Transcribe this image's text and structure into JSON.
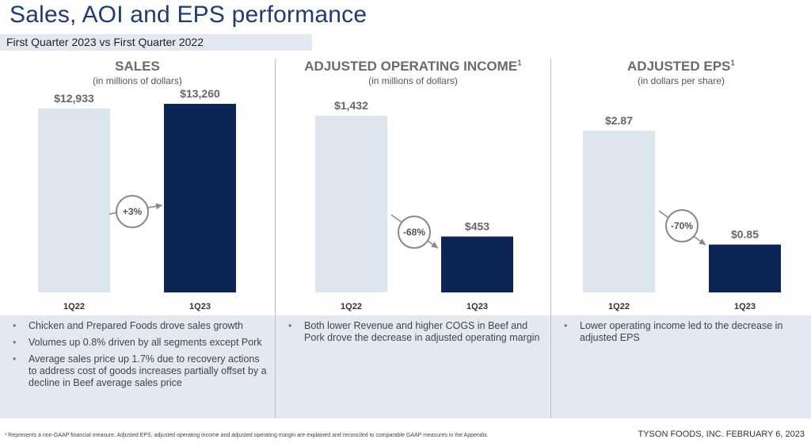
{
  "page": {
    "title": "Sales, AOI and EPS performance",
    "subtitle": "First Quarter 2023 vs First Quarter 2022",
    "footnote": "¹ Represents a non-GAAP financial measure. Adjusted EPS, adjusted operating income and adjusted operating margin are explained and reconciled to comparable GAAP measures in the Appendix.",
    "company_date": "TYSON FOODS, INC. FEBRUARY 6, 2023"
  },
  "colors": {
    "light_bar": "#dde5ef",
    "dark_bar": "#0b2554",
    "title": "#1f3b73",
    "note_bg": "#e2e9f2"
  },
  "panels": [
    {
      "title": "SALES",
      "title_sup": "",
      "unit": "(in millions of dollars)",
      "notes": [
        "Chicken and Prepared Foods drove sales growth",
        "Volumes up 0.8% driven by all segments except Pork",
        "Average sales price up 1.7% due to recovery actions to address cost of goods increases partially offset by a decline in Beef average sales price"
      ]
    },
    {
      "title": "ADJUSTED OPERATING INCOME",
      "title_sup": "1",
      "unit": "(in millions of dollars)",
      "notes": [
        "Both lower Revenue and higher COGS in Beef and Pork drove the decrease in adjusted operating margin"
      ]
    },
    {
      "title": "ADJUSTED EPS",
      "title_sup": "1",
      "unit": "(in dollars per share)",
      "notes": [
        "Lower operating income led to the decrease in adjusted EPS"
      ]
    }
  ],
  "chart_data": [
    {
      "type": "bar",
      "title": "SALES",
      "categories": [
        "1Q22",
        "1Q23"
      ],
      "values": [
        12933,
        13260
      ],
      "value_labels": [
        "$12,933",
        "$13,260"
      ],
      "change_label": "+3%",
      "ylim": [
        0,
        13260
      ],
      "grid": false
    },
    {
      "type": "bar",
      "title": "ADJUSTED OPERATING INCOME",
      "categories": [
        "1Q22",
        "1Q23"
      ],
      "values": [
        1432,
        453
      ],
      "value_labels": [
        "$1,432",
        "$453"
      ],
      "change_label": "-68%",
      "ylim": [
        0,
        1432
      ],
      "grid": false
    },
    {
      "type": "bar",
      "title": "ADJUSTED EPS",
      "categories": [
        "1Q22",
        "1Q23"
      ],
      "values": [
        2.87,
        0.85
      ],
      "value_labels": [
        "$2.87",
        "$0.85"
      ],
      "change_label": "-70%",
      "ylim": [
        0,
        2.87
      ],
      "grid": false
    }
  ]
}
